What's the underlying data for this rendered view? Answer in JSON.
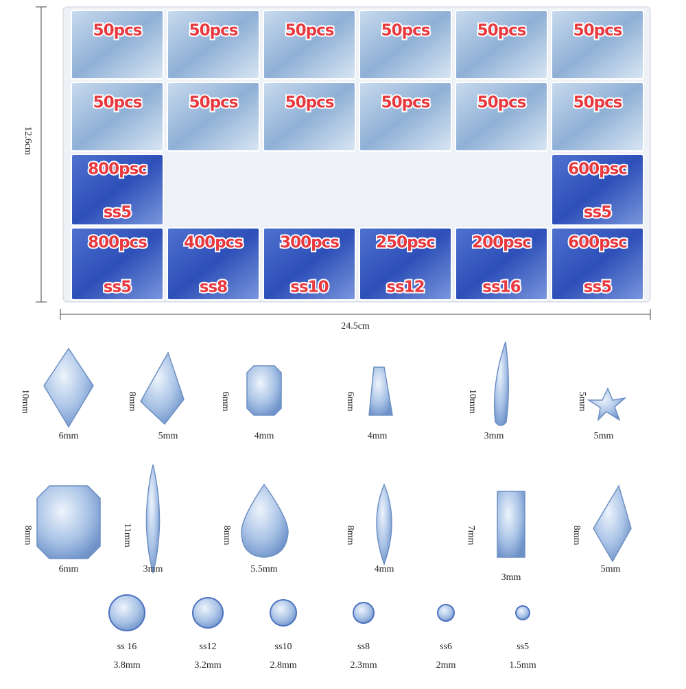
{
  "box": {
    "height_label": "12.6cm",
    "width_label": "24.5cm",
    "rows": [
      [
        {
          "count": "50pcs"
        },
        {
          "count": "50pcs"
        },
        {
          "count": "50pcs"
        },
        {
          "count": "50pcs"
        },
        {
          "count": "50pcs"
        },
        {
          "count": "50pcs"
        }
      ],
      [
        {
          "count": "50pcs"
        },
        {
          "count": "50pcs"
        },
        {
          "count": "50pcs"
        },
        {
          "count": "50pcs"
        },
        {
          "count": "50pcs"
        },
        {
          "count": "50pcs"
        }
      ],
      [
        {
          "count": "800psc",
          "size": "ss5"
        },
        {
          "count": "600psc",
          "size": "ss5"
        }
      ],
      [
        {
          "count": "800pcs",
          "size": "ss5"
        },
        {
          "count": "400pcs",
          "size": "ss8"
        },
        {
          "count": "300pcs",
          "size": "ss10"
        },
        {
          "count": "250psc",
          "size": "ss12"
        },
        {
          "count": "200psc",
          "size": "ss16"
        },
        {
          "count": "600psc",
          "size": "ss5"
        }
      ]
    ]
  },
  "shapes": [
    {
      "height": "10mm",
      "width": "6mm"
    },
    {
      "height": "8mm",
      "width": "5mm"
    },
    {
      "height": "6mm",
      "width": "4mm"
    },
    {
      "height": "6mm",
      "width": "4mm"
    },
    {
      "height": "10mm",
      "width": "3mm"
    },
    {
      "height": "5mm",
      "width": "5mm"
    },
    {
      "height": "8mm",
      "width": "6mm"
    },
    {
      "height": "11mm",
      "width": "3mm"
    },
    {
      "height": "8mm",
      "width": "5.5mm"
    },
    {
      "height": "8mm",
      "width": "4mm"
    },
    {
      "height": "7mm",
      "width": "3mm"
    },
    {
      "height": "8mm",
      "width": "5mm"
    }
  ],
  "rounds": [
    {
      "name": "ss 16",
      "size": "3.8mm"
    },
    {
      "name": "ss12",
      "size": "3.2mm"
    },
    {
      "name": "ss10",
      "size": "2.8mm"
    },
    {
      "name": "ss8",
      "size": "2.3mm"
    },
    {
      "name": "ss6",
      "size": "2mm"
    },
    {
      "name": "ss5",
      "size": "1.5mm"
    }
  ]
}
